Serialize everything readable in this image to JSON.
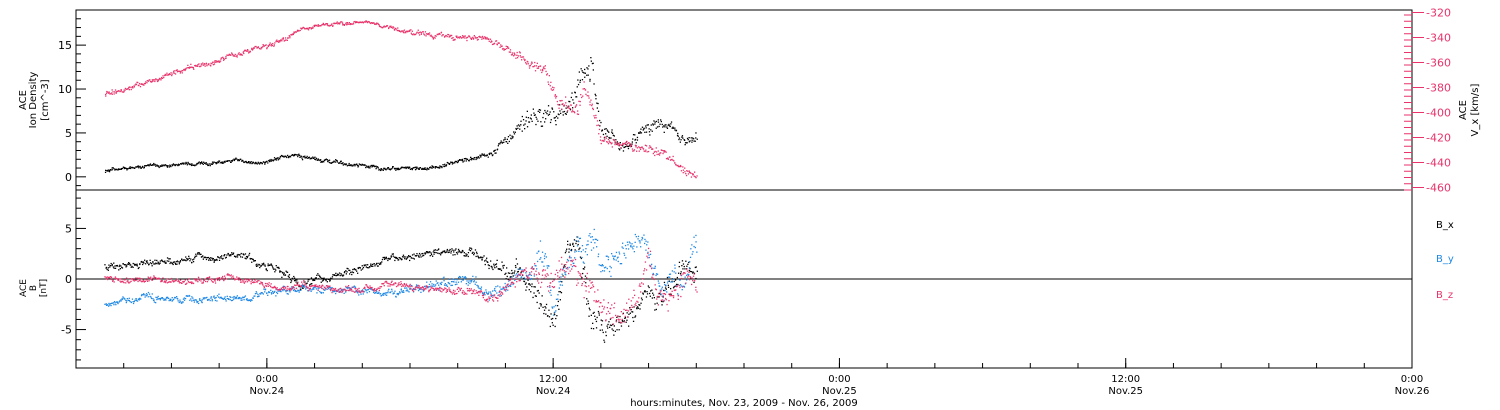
{
  "chart_data": [
    {
      "type": "scatter",
      "panel": "top",
      "title": "",
      "ylabel_left": [
        "ACE",
        "Ion Density",
        "[cm^-3]"
      ],
      "ylabel_right": [
        "ACE",
        "V_x [km/s]"
      ],
      "ylim_left": [
        -1.5,
        19
      ],
      "yticks_left": [
        0,
        5,
        10,
        15
      ],
      "ylim_right": [
        -462,
        -318
      ],
      "yticks_right": [
        -320,
        -340,
        -360,
        -380,
        -400,
        -420,
        -440,
        -460
      ],
      "xlim_hours": [
        -8,
        48
      ],
      "series": [
        {
          "name": "",
          "axis": "left",
          "color": "#000000",
          "x": [
            -6.8,
            -5,
            -3,
            -1,
            0,
            1.2,
            3,
            5,
            7,
            9.2,
            10,
            11,
            11.6,
            12.2,
            12.8,
            13.3,
            13.6,
            14,
            15,
            16.5,
            17.5,
            18
          ],
          "y": [
            0.8,
            1.3,
            1.6,
            1.8,
            1.8,
            2.6,
            1.6,
            1,
            1.1,
            2.6,
            4,
            6.5,
            7.5,
            7.2,
            9.5,
            11,
            13,
            5,
            3.5,
            6.5,
            4.2,
            4.6
          ],
          "spread": [
            0.25,
            0.25,
            0.3,
            0.3,
            0.3,
            0.4,
            0.3,
            0.3,
            0.3,
            0.5,
            1.0,
            1.8,
            1.8,
            1.8,
            2.0,
            2.2,
            2.5,
            1.2,
            1.0,
            1.2,
            1.0,
            1.0
          ]
        },
        {
          "name": "",
          "axis": "right",
          "color": "#e8336b",
          "x": [
            -6.8,
            -5,
            -3,
            -1,
            0.5,
            1.5,
            3,
            4.4,
            5.5,
            7,
            8,
            9,
            10,
            11,
            11.7,
            12.2,
            12.8,
            13.3,
            14,
            15,
            16,
            16.5,
            17.5,
            18
          ],
          "y": [
            -386,
            -375,
            -363,
            -352,
            -343,
            -333,
            -328,
            -327,
            -334,
            -338,
            -340,
            -340,
            -348,
            -360,
            -368,
            -390,
            -398,
            -382,
            -422,
            -425,
            -430,
            -432,
            -447,
            -450
          ],
          "spread": [
            4,
            3,
            3,
            3,
            3,
            2,
            2,
            2,
            3,
            3,
            3,
            3,
            4,
            6,
            8,
            10,
            10,
            10,
            7,
            6,
            6,
            5,
            5,
            5
          ]
        }
      ]
    },
    {
      "type": "scatter",
      "panel": "bottom",
      "title": "",
      "ylabel_left": [
        "ACE",
        "B",
        "[nT]"
      ],
      "ylim": [
        -8.8,
        8.8
      ],
      "yticks": [
        -5,
        0,
        5
      ],
      "zero_line": true,
      "legend_position": "right",
      "xlim_hours": [
        -8,
        48
      ],
      "series": [
        {
          "name": "B_x",
          "color": "#000000",
          "x": [
            -6.8,
            -5,
            -3,
            -1,
            0.5,
            1.2,
            3,
            5,
            7,
            8.5,
            9.5,
            10.5,
            11,
            11.5,
            12,
            12.5,
            13,
            13.5,
            14.2,
            15,
            16,
            16.5,
            17.5,
            18
          ],
          "y": [
            1.2,
            1.5,
            2.2,
            2.4,
            1.0,
            -0.5,
            0.4,
            2.0,
            2.5,
            3.0,
            1.2,
            0.8,
            0,
            -3,
            -5,
            3.0,
            4.0,
            -3.0,
            -5.0,
            -4.0,
            -2.0,
            -2.0,
            1.5,
            0.5
          ],
          "spread": [
            0.6,
            0.5,
            0.5,
            0.5,
            0.7,
            0.8,
            0.6,
            0.5,
            0.5,
            0.6,
            1.0,
            1.2,
            1.5,
            2.0,
            2.0,
            1.5,
            1.5,
            2.0,
            1.5,
            1.5,
            1.5,
            1.5,
            1.5,
            1.5
          ]
        },
        {
          "name": "B_y",
          "color": "#1e88e5",
          "x": [
            -6.8,
            -5,
            -3,
            -1,
            0.5,
            1.5,
            3,
            5,
            7,
            8.5,
            9.5,
            10.5,
            11,
            11.5,
            12,
            12.5,
            13,
            13.5,
            14.2,
            15,
            16,
            16.5,
            17.5,
            18
          ],
          "y": [
            -2.5,
            -1.5,
            -2.0,
            -2.0,
            -1.0,
            -1.0,
            -1.0,
            -1.5,
            -0.5,
            0,
            -1.5,
            0,
            1.0,
            3.0,
            -3.0,
            2.0,
            3.0,
            4.0,
            2.0,
            4.0,
            3.0,
            0,
            0,
            4.0
          ],
          "spread": [
            0.4,
            0.5,
            0.5,
            0.5,
            0.6,
            0.6,
            0.6,
            0.5,
            0.7,
            0.8,
            1.0,
            1.2,
            1.5,
            2.0,
            2.0,
            2.0,
            2.0,
            2.0,
            2.0,
            2.0,
            2.0,
            2.0,
            2.0,
            2.0
          ]
        },
        {
          "name": "B_z",
          "color": "#e8336b",
          "x": [
            -6.8,
            -5,
            -3,
            -1,
            0.5,
            1.5,
            3,
            5,
            7,
            8.5,
            9.5,
            10.5,
            11,
            11.5,
            12,
            12.5,
            13,
            13.5,
            14.2,
            15,
            16,
            16.5,
            17.5,
            18
          ],
          "y": [
            0,
            0,
            0,
            0,
            -1.0,
            -0.5,
            -1.0,
            -0.5,
            -1.0,
            -1.0,
            -2.0,
            0,
            1.0,
            0,
            0,
            2.0,
            1.0,
            0,
            -3.0,
            -4.0,
            2.0,
            -3.0,
            0,
            -1.0
          ],
          "spread": [
            0.5,
            0.5,
            0.5,
            0.5,
            0.5,
            0.5,
            0.5,
            0.5,
            0.5,
            0.6,
            0.8,
            1.0,
            1.2,
            1.5,
            2.0,
            2.0,
            2.0,
            2.0,
            2.0,
            2.0,
            2.0,
            2.0,
            2.0,
            2.0
          ]
        }
      ]
    }
  ],
  "xaxis": {
    "ticks": [
      {
        "hour": 0,
        "time": "0:00",
        "date": "Nov.24"
      },
      {
        "hour": 12,
        "time": "12:00",
        "date": "Nov.24"
      },
      {
        "hour": 24,
        "time": "0:00",
        "date": "Nov.25"
      },
      {
        "hour": 36,
        "time": "12:00",
        "date": "Nov.25"
      },
      {
        "hour": 48,
        "time": "0:00",
        "date": "Nov.26"
      }
    ],
    "minor_step_hours": 2,
    "label": "hours:minutes, Nov. 23, 2009 - Nov. 26, 2009"
  }
}
